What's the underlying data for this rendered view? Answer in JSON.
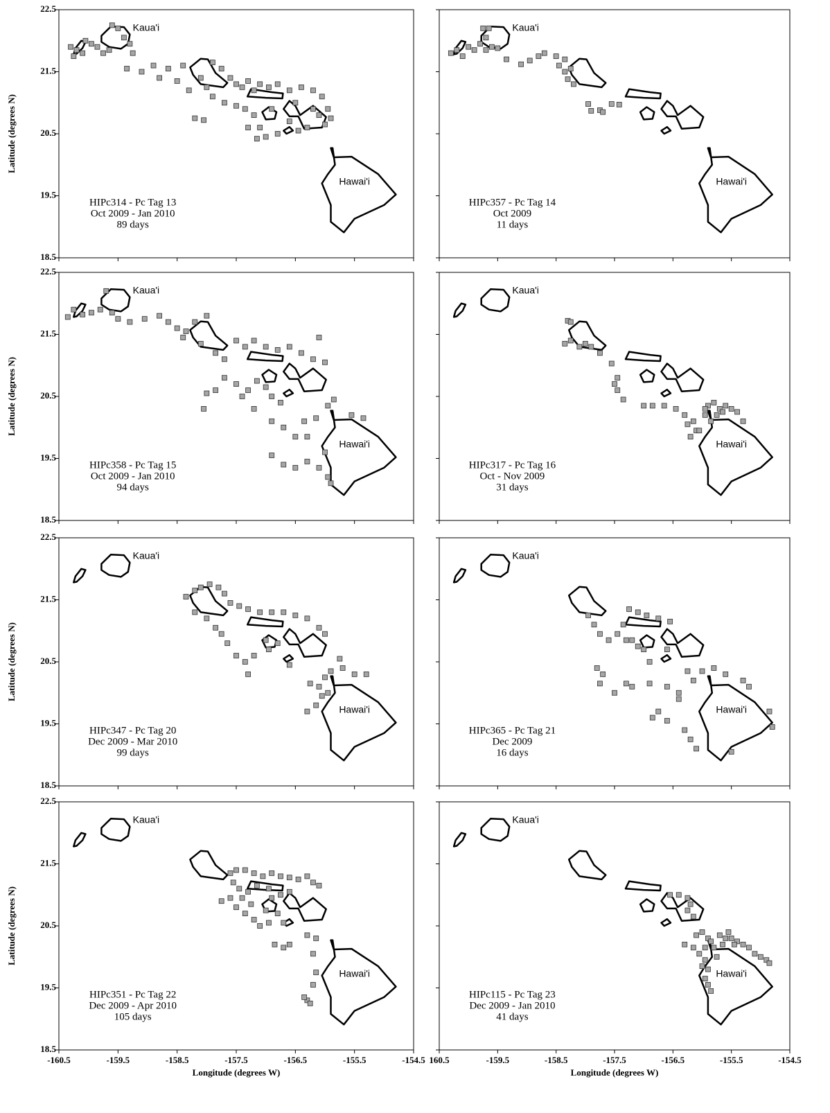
{
  "chart_data": [
    {
      "type": "scatter",
      "color": "#a6a6a6",
      "xlim": [
        -160.5,
        -154.5
      ],
      "ylim": [
        18.5,
        22.5
      ],
      "xticks": [
        -160.5,
        -159.5,
        -158.5,
        -157.5,
        -156.5,
        -155.5,
        -154.5
      ],
      "yticks": [
        18.5,
        19.5,
        20.5,
        21.5,
        22.5
      ],
      "xtick_labels": false,
      "ytick_labels": true,
      "ylabel": "Latitude (degrees N)",
      "island_labels": [
        "Kaua'i",
        "Hawai'i"
      ],
      "annotation": [
        "HIPc314 - Pc Tag 13",
        "Oct 2009 - Jan 2010",
        "89 days"
      ],
      "x": [
        -160.3,
        -160.25,
        -160.2,
        -160.1,
        -160.05,
        -159.95,
        -159.85,
        -159.75,
        -159.65,
        -159.6,
        -159.5,
        -159.4,
        -159.3,
        -159.25,
        -159.35,
        -159.1,
        -158.9,
        -158.8,
        -158.65,
        -158.5,
        -158.4,
        -158.3,
        -158.1,
        -158.0,
        -157.9,
        -157.75,
        -157.6,
        -157.5,
        -157.4,
        -157.3,
        -157.2,
        -157.1,
        -156.95,
        -156.8,
        -156.6,
        -156.4,
        -156.2,
        -156.05,
        -155.95,
        -155.9,
        -156.1,
        -156.3,
        -156.45,
        -156.6,
        -156.8,
        -157.0,
        -157.1,
        -157.2,
        -157.35,
        -157.5,
        -157.3,
        -157.15,
        -158.05,
        -158.2,
        -157.7,
        -157.9,
        -156.9,
        -156.5,
        -156.2,
        -156.0
      ],
      "y": [
        21.9,
        21.75,
        21.85,
        21.8,
        22.0,
        21.95,
        21.9,
        21.8,
        21.85,
        22.25,
        22.2,
        22.05,
        21.95,
        21.8,
        21.55,
        21.5,
        21.6,
        21.4,
        21.55,
        21.35,
        21.6,
        21.2,
        21.4,
        21.25,
        21.65,
        21.55,
        21.4,
        21.3,
        21.25,
        21.35,
        21.2,
        21.3,
        21.25,
        21.3,
        21.2,
        21.25,
        21.2,
        21.1,
        20.9,
        20.75,
        20.8,
        20.6,
        20.55,
        20.7,
        20.5,
        20.45,
        20.6,
        20.8,
        20.9,
        20.95,
        20.6,
        20.42,
        20.72,
        20.75,
        21.0,
        21.1,
        20.9,
        21.0,
        20.9,
        20.65
      ]
    },
    {
      "type": "scatter",
      "color": "#a6a6a6",
      "xlim": [
        -160.5,
        -154.5
      ],
      "ylim": [
        18.5,
        22.5
      ],
      "xticks": [
        -160.5,
        -159.5,
        -158.5,
        -157.5,
        -156.5,
        -155.5,
        -154.5
      ],
      "yticks": [
        18.5,
        19.5,
        20.5,
        21.5,
        22.5
      ],
      "xtick_labels": false,
      "ytick_labels": false,
      "island_labels": [
        "Kaua'i",
        "Hawai'i"
      ],
      "annotation": [
        "HIPc357 -  Pc Tag 14",
        "Oct 2009",
        "11 days"
      ],
      "x": [
        -160.3,
        -160.2,
        -160.1,
        -160.0,
        -159.9,
        -159.8,
        -159.7,
        -159.75,
        -159.65,
        -159.7,
        -159.6,
        -159.5,
        -159.35,
        -159.1,
        -158.95,
        -158.8,
        -158.7,
        -158.5,
        -158.35,
        -158.45,
        -158.35,
        -158.3,
        -158.2,
        -158.25,
        -157.95,
        -157.9,
        -157.75,
        -157.55,
        -157.42,
        -157.7
      ],
      "y": [
        21.8,
        21.85,
        21.75,
        21.9,
        21.85,
        21.95,
        21.85,
        22.2,
        22.2,
        22.05,
        21.9,
        21.88,
        21.7,
        21.62,
        21.68,
        21.75,
        21.8,
        21.75,
        21.7,
        21.6,
        21.5,
        21.38,
        21.3,
        21.55,
        20.98,
        20.87,
        20.88,
        20.98,
        20.97,
        20.85
      ]
    },
    {
      "type": "scatter",
      "color": "#a6a6a6",
      "xlim": [
        -160.5,
        -154.5
      ],
      "ylim": [
        18.5,
        22.5
      ],
      "xticks": [
        -160.5,
        -159.5,
        -158.5,
        -157.5,
        -156.5,
        -155.5,
        -154.5
      ],
      "yticks": [
        18.5,
        19.5,
        20.5,
        21.5,
        22.5
      ],
      "xtick_labels": false,
      "ytick_labels": true,
      "ylabel": "Latitude (degrees N)",
      "island_labels": [
        "Kaua'i",
        "Hawai'i"
      ],
      "annotation": [
        "HIPc358 - Pc Tag 15",
        "Oct 2009  - Jan 2010",
        "94 days"
      ],
      "x": [
        -160.35,
        -160.25,
        -160.1,
        -159.95,
        -159.8,
        -159.6,
        -159.7,
        -159.5,
        -159.3,
        -159.05,
        -158.8,
        -158.65,
        -158.5,
        -158.35,
        -158.2,
        -158.4,
        -158.1,
        -158.0,
        -157.85,
        -157.7,
        -157.5,
        -157.35,
        -157.2,
        -157.0,
        -156.8,
        -156.6,
        -156.4,
        -156.2,
        -156.0,
        -156.1,
        -158.0,
        -158.05,
        -157.85,
        -157.7,
        -157.5,
        -157.3,
        -157.15,
        -157.0,
        -156.9,
        -156.75,
        -157.4,
        -157.2,
        -156.9,
        -156.7,
        -156.5,
        -156.3,
        -156.35,
        -156.15,
        -155.95,
        -155.85,
        -155.55,
        -155.35,
        -156.9,
        -156.7,
        -156.5,
        -156.3,
        -156.1,
        -155.95,
        -155.9,
        -156.0
      ],
      "y": [
        21.78,
        21.9,
        21.82,
        21.85,
        21.9,
        21.85,
        22.2,
        21.75,
        21.7,
        21.75,
        21.8,
        21.7,
        21.6,
        21.55,
        21.7,
        21.45,
        21.35,
        21.8,
        21.2,
        21.1,
        21.4,
        21.3,
        21.4,
        21.3,
        21.25,
        21.3,
        21.2,
        21.1,
        21.05,
        21.45,
        20.55,
        20.3,
        20.6,
        20.8,
        20.7,
        20.6,
        20.75,
        20.65,
        20.5,
        20.4,
        20.5,
        20.3,
        20.1,
        20.0,
        19.85,
        19.85,
        20.1,
        20.15,
        20.35,
        20.45,
        20.2,
        20.15,
        19.55,
        19.4,
        19.35,
        19.45,
        19.35,
        19.2,
        19.1,
        19.6
      ]
    },
    {
      "type": "scatter",
      "color": "#a6a6a6",
      "xlim": [
        -160.5,
        -154.5
      ],
      "ylim": [
        18.5,
        22.5
      ],
      "xticks": [
        -160.5,
        -159.5,
        -158.5,
        -157.5,
        -156.5,
        -155.5,
        -154.5
      ],
      "yticks": [
        18.5,
        19.5,
        20.5,
        21.5,
        22.5
      ],
      "xtick_labels": false,
      "ytick_labels": false,
      "island_labels": [
        "Kaua'i",
        "Hawai'i"
      ],
      "annotation": [
        "HIPc317 - Pc Tag 16",
        "Oct - Nov 2009",
        "31 days"
      ],
      "x": [
        -158.3,
        -158.25,
        -158.35,
        -158.25,
        -158.1,
        -158.0,
        -157.9,
        -157.75,
        -157.55,
        -157.45,
        -157.5,
        -157.45,
        -157.35,
        -157.0,
        -156.85,
        -156.65,
        -156.45,
        -156.3,
        -156.25,
        -156.1,
        -156.2,
        -156.05,
        -155.95,
        -155.9,
        -155.8,
        -155.7,
        -155.6,
        -155.5,
        -155.4,
        -155.3,
        -155.85,
        -155.75,
        -155.65,
        -156.15,
        -155.95
      ],
      "y": [
        21.72,
        21.7,
        21.35,
        21.4,
        21.3,
        21.35,
        21.3,
        21.2,
        21.03,
        20.8,
        20.7,
        20.6,
        20.45,
        20.35,
        20.35,
        20.35,
        20.3,
        20.2,
        20.05,
        19.95,
        19.85,
        19.95,
        20.2,
        20.35,
        20.4,
        20.3,
        20.35,
        20.3,
        20.25,
        20.1,
        20.1,
        20.2,
        20.25,
        20.1,
        20.3
      ]
    },
    {
      "type": "scatter",
      "color": "#a6a6a6",
      "xlim": [
        -160.5,
        -154.5
      ],
      "ylim": [
        18.5,
        22.5
      ],
      "xticks": [
        -160.5,
        -159.5,
        -158.5,
        -157.5,
        -156.5,
        -155.5,
        -154.5
      ],
      "yticks": [
        18.5,
        19.5,
        20.5,
        21.5,
        22.5
      ],
      "xtick_labels": false,
      "ytick_labels": true,
      "ylabel": "Latitude (degrees N)",
      "island_labels": [
        "Kaua'i",
        "Hawai'i"
      ],
      "annotation": [
        "HIPc347 -  Pc Tag 20",
        "Dec 2009  - Mar 2010",
        "99 days"
      ],
      "x": [
        -158.35,
        -158.2,
        -158.1,
        -157.95,
        -157.8,
        -157.7,
        -157.6,
        -157.45,
        -157.3,
        -157.1,
        -156.9,
        -156.7,
        -156.5,
        -156.3,
        -156.1,
        -156.0,
        -158.2,
        -158.0,
        -157.85,
        -157.75,
        -157.65,
        -157.5,
        -157.35,
        -157.3,
        -157.2,
        -157.0,
        -156.8,
        -156.95,
        -156.6,
        -156.25,
        -156.1,
        -156.0,
        -155.9,
        -155.7,
        -155.5,
        -155.3,
        -155.75,
        -156.3,
        -156.15,
        -156.05,
        -155.95
      ],
      "y": [
        21.55,
        21.65,
        21.7,
        21.75,
        21.7,
        21.6,
        21.45,
        21.4,
        21.35,
        21.3,
        21.3,
        21.3,
        21.25,
        21.2,
        21.05,
        20.95,
        21.3,
        21.2,
        21.05,
        20.95,
        20.8,
        20.6,
        20.5,
        20.3,
        20.6,
        20.85,
        20.8,
        20.7,
        20.45,
        20.15,
        20.1,
        20.25,
        20.35,
        20.4,
        20.3,
        20.3,
        20.55,
        19.7,
        19.8,
        19.95,
        20.0
      ]
    },
    {
      "type": "scatter",
      "color": "#a6a6a6",
      "xlim": [
        -160.5,
        -154.5
      ],
      "ylim": [
        18.5,
        22.5
      ],
      "xticks": [
        -160.5,
        -159.5,
        -158.5,
        -157.5,
        -156.5,
        -155.5,
        -154.5
      ],
      "yticks": [
        18.5,
        19.5,
        20.5,
        21.5,
        22.5
      ],
      "xtick_labels": false,
      "ytick_labels": false,
      "island_labels": [
        "Kaua'i",
        "Hawai'i"
      ],
      "annotation": [
        "HIPc365 - Pc Tag 21",
        "Dec 2009",
        "16 days"
      ],
      "x": [
        -157.95,
        -157.85,
        -157.75,
        -157.6,
        -157.45,
        -157.35,
        -157.25,
        -157.1,
        -156.95,
        -156.75,
        -156.55,
        -157.1,
        -157.2,
        -157.3,
        -157.0,
        -156.9,
        -156.6,
        -157.8,
        -157.7,
        -157.75,
        -157.2,
        -156.9,
        -156.6,
        -156.4,
        -156.25,
        -156.15,
        -156.0,
        -155.8,
        -155.6,
        -155.3,
        -155.2,
        -156.75,
        -156.85,
        -156.6,
        -156.4,
        -156.3,
        -156.2,
        -156.1,
        -155.5,
        -154.85,
        -154.8,
        -157.5,
        -157.3
      ],
      "y": [
        21.25,
        21.1,
        20.95,
        20.85,
        20.95,
        21.1,
        21.35,
        21.3,
        21.25,
        21.2,
        21.15,
        20.75,
        20.85,
        20.85,
        20.7,
        20.5,
        20.7,
        20.4,
        20.3,
        20.15,
        20.1,
        20.15,
        20.1,
        20.0,
        20.35,
        20.2,
        20.35,
        20.4,
        20.3,
        20.2,
        20.1,
        19.7,
        19.6,
        19.55,
        19.9,
        19.4,
        19.25,
        19.1,
        19.05,
        19.7,
        19.45,
        20.0,
        20.15
      ]
    },
    {
      "type": "scatter",
      "color": "#a6a6a6",
      "xlim": [
        -160.5,
        -154.5
      ],
      "ylim": [
        18.5,
        22.5
      ],
      "xticks": [
        -160.5,
        -159.5,
        -158.5,
        -157.5,
        -156.5,
        -155.5,
        -154.5
      ],
      "yticks": [
        18.5,
        19.5,
        20.5,
        21.5,
        22.5
      ],
      "xtick_labels": true,
      "ytick_labels": true,
      "ylabel": "Latitude (degrees N)",
      "xlabel": "Longitude (degrees W)",
      "island_labels": [
        "Kaua'i",
        "Hawai'i"
      ],
      "annotation": [
        "HIPc351 - Pc Tag 22",
        "Dec 2009 - Apr 2010",
        "105 days"
      ],
      "x": [
        -157.6,
        -157.5,
        -157.35,
        -157.2,
        -157.05,
        -156.9,
        -156.75,
        -156.6,
        -156.45,
        -156.3,
        -156.2,
        -156.1,
        -157.55,
        -157.45,
        -157.3,
        -157.6,
        -157.75,
        -157.5,
        -157.35,
        -157.2,
        -157.1,
        -156.95,
        -157.0,
        -156.9,
        -156.75,
        -156.8,
        -156.7,
        -156.95,
        -156.6,
        -157.25,
        -157.4,
        -157.15,
        -156.85,
        -156.7,
        -156.6,
        -156.3,
        -156.15,
        -156.2,
        -156.15,
        -156.2,
        -156.3,
        -156.25,
        -156.35
      ],
      "y": [
        21.35,
        21.4,
        21.4,
        21.35,
        21.3,
        21.35,
        21.3,
        21.28,
        21.25,
        21.3,
        21.2,
        21.15,
        21.2,
        21.1,
        21.05,
        20.95,
        20.9,
        20.8,
        20.7,
        20.6,
        20.5,
        20.55,
        20.75,
        20.95,
        21.0,
        20.7,
        20.55,
        21.1,
        21.05,
        20.85,
        20.95,
        21.15,
        20.2,
        20.15,
        20.2,
        20.35,
        20.3,
        20.05,
        19.75,
        19.55,
        19.3,
        19.25,
        19.35
      ]
    },
    {
      "type": "scatter",
      "color": "#a6a6a6",
      "xlim": [
        -160.5,
        -154.5
      ],
      "ylim": [
        18.5,
        22.5
      ],
      "xticks": [
        {
          "value": -160.5,
          "label": "160.5"
        },
        -159.5,
        -158.5,
        -157.5,
        -156.5,
        -155.5,
        -154.5
      ],
      "yticks": [
        18.5,
        19.5,
        20.5,
        21.5,
        22.5
      ],
      "xtick_labels": true,
      "ytick_labels": false,
      "xlabel": "Longitude (degrees W)",
      "island_labels": [
        "Kaua'i",
        "Hawai'i"
      ],
      "annotation": [
        "HIPc115 -  Pc Tag 23",
        "Dec 2009 - Jan 2010",
        "41 days"
      ],
      "x": [
        -156.55,
        -156.4,
        -156.25,
        -156.2,
        -156.25,
        -156.15,
        -156.3,
        -156.15,
        -156.1,
        -156.0,
        -155.9,
        -155.85,
        -155.7,
        -155.6,
        -155.5,
        -155.4,
        -155.3,
        -155.2,
        -155.1,
        -155.0,
        -154.9,
        -154.85,
        -155.65,
        -155.45,
        -155.95,
        -156.05,
        -155.95,
        -155.9,
        -155.95,
        -155.9,
        -155.85,
        -156.0,
        -155.8,
        -155.55,
        -155.75
      ],
      "y": [
        21.0,
        21.0,
        20.95,
        20.85,
        20.75,
        20.65,
        20.2,
        20.15,
        20.35,
        20.4,
        20.3,
        20.25,
        20.35,
        20.3,
        20.3,
        20.25,
        20.2,
        20.15,
        20.05,
        20.0,
        19.95,
        19.9,
        20.2,
        20.2,
        20.15,
        20.05,
        19.95,
        19.8,
        19.65,
        19.55,
        19.45,
        19.85,
        20.15,
        20.4,
        20.0
      ]
    }
  ]
}
